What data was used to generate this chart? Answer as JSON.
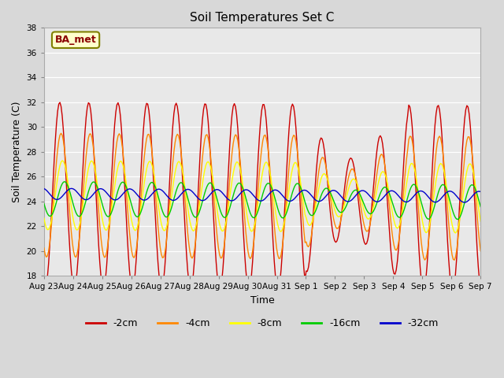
{
  "title": "Soil Temperatures Set C",
  "xlabel": "Time",
  "ylabel": "Soil Temperature (C)",
  "ylim": [
    18,
    38
  ],
  "yticks": [
    18,
    20,
    22,
    24,
    26,
    28,
    30,
    32,
    34,
    36,
    38
  ],
  "fig_facecolor": "#d8d8d8",
  "plot_bg_color": "#e8e8e8",
  "label_box_text": "BA_met",
  "label_box_facecolor": "#ffffcc",
  "label_box_edgecolor": "#808000",
  "label_box_textcolor": "#8b0000",
  "series_colors": {
    "-2cm": "#cc0000",
    "-4cm": "#ff8800",
    "-8cm": "#ffff00",
    "-16cm": "#00cc00",
    "-32cm": "#0000cc"
  },
  "xtick_labels": [
    "Aug 23",
    "Aug 24",
    "Aug 25",
    "Aug 26",
    "Aug 27",
    "Aug 28",
    "Aug 29",
    "Aug 30",
    "Aug 31",
    "Sep 1",
    "Sep 2",
    "Sep 3",
    "Sep 4",
    "Sep 5",
    "Sep 6",
    "Sep 7"
  ],
  "n_points": 384,
  "days": 15
}
